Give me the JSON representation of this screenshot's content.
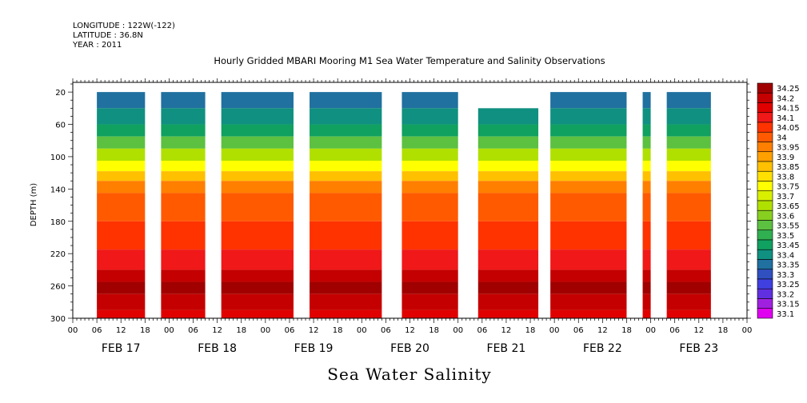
{
  "header": {
    "longitude": "LONGITUDE : 122W(-122)",
    "latitude": "LATITUDE : 36.8N",
    "year": "YEAR : 2011"
  },
  "chart_data": {
    "type": "heatmap",
    "title": "Hourly Gridded MBARI Mooring M1 Sea Water Temperature and Salinity Observations",
    "bottom_title": "Sea Water Salinity",
    "ylabel": "DEPTH (m)",
    "xlabel": "",
    "y_ticks": [
      20,
      60,
      100,
      140,
      180,
      220,
      260,
      300
    ],
    "ylim": [
      300,
      8
    ],
    "x_start": "2011-02-17T00:00",
    "x_end": "2011-02-24T00:00",
    "x_hour_labels": [
      "00",
      "06",
      "12",
      "18",
      "00",
      "06",
      "12",
      "18",
      "00",
      "06",
      "12",
      "18",
      "00",
      "06",
      "12",
      "18",
      "00",
      "06",
      "12",
      "18",
      "00",
      "06",
      "12",
      "18",
      "00",
      "06",
      "12",
      "18",
      "00"
    ],
    "day_labels": [
      "FEB 17",
      "FEB 18",
      "FEB 19",
      "FEB 20",
      "FEB 21",
      "FEB 22",
      "FEB 23"
    ],
    "colorbar_levels": [
      "34.25",
      "34.2",
      "34.15",
      "34.1",
      "34.05",
      "34",
      "33.95",
      "33.9",
      "33.85",
      "33.8",
      "33.75",
      "33.7",
      "33.65",
      "33.6",
      "33.55",
      "33.5",
      "33.45",
      "33.4",
      "33.35",
      "33.3",
      "33.25",
      "33.2",
      "33.15",
      "33.1"
    ],
    "colorbar_colors": [
      "#a00000",
      "#c40000",
      "#e00000",
      "#f01818",
      "#ff3300",
      "#ff5a00",
      "#ff7f00",
      "#ffa000",
      "#ffc000",
      "#ffe000",
      "#ffff00",
      "#d8f000",
      "#b0e000",
      "#88d020",
      "#5cc040",
      "#30b050",
      "#10a060",
      "#109080",
      "#2070a0",
      "#3050c0",
      "#4040e0",
      "#6030e0",
      "#a020e0",
      "#e000f0"
    ],
    "segments": [
      {
        "start_hour": 6,
        "end_hour": 18,
        "top_depth": 20
      },
      {
        "start_hour": 22,
        "end_hour": 33,
        "top_depth": 20
      },
      {
        "start_hour": 37,
        "end_hour": 55,
        "top_depth": 20
      },
      {
        "start_hour": 59,
        "end_hour": 77,
        "top_depth": 20
      },
      {
        "start_hour": 82,
        "end_hour": 96,
        "top_depth": 20
      },
      {
        "start_hour": 101,
        "end_hour": 116,
        "top_depth": 40
      },
      {
        "start_hour": 119,
        "end_hour": 138,
        "top_depth": 20
      },
      {
        "start_hour": 142,
        "end_hour": 144,
        "top_depth": 20
      },
      {
        "start_hour": 148,
        "end_hour": 159,
        "top_depth": 20
      }
    ],
    "profile": [
      {
        "depth": 20,
        "value": 33.35
      },
      {
        "depth": 40,
        "value": 33.4
      },
      {
        "depth": 60,
        "value": 33.45
      },
      {
        "depth": 75,
        "value": 33.55
      },
      {
        "depth": 90,
        "value": 33.65
      },
      {
        "depth": 105,
        "value": 33.75
      },
      {
        "depth": 118,
        "value": 33.85
      },
      {
        "depth": 130,
        "value": 33.95
      },
      {
        "depth": 145,
        "value": 34.0
      },
      {
        "depth": 180,
        "value": 34.05
      },
      {
        "depth": 215,
        "value": 34.1
      },
      {
        "depth": 240,
        "value": 34.2
      },
      {
        "depth": 255,
        "value": 34.25
      },
      {
        "depth": 270,
        "value": 34.2
      },
      {
        "depth": 290,
        "value": 34.15
      }
    ]
  }
}
